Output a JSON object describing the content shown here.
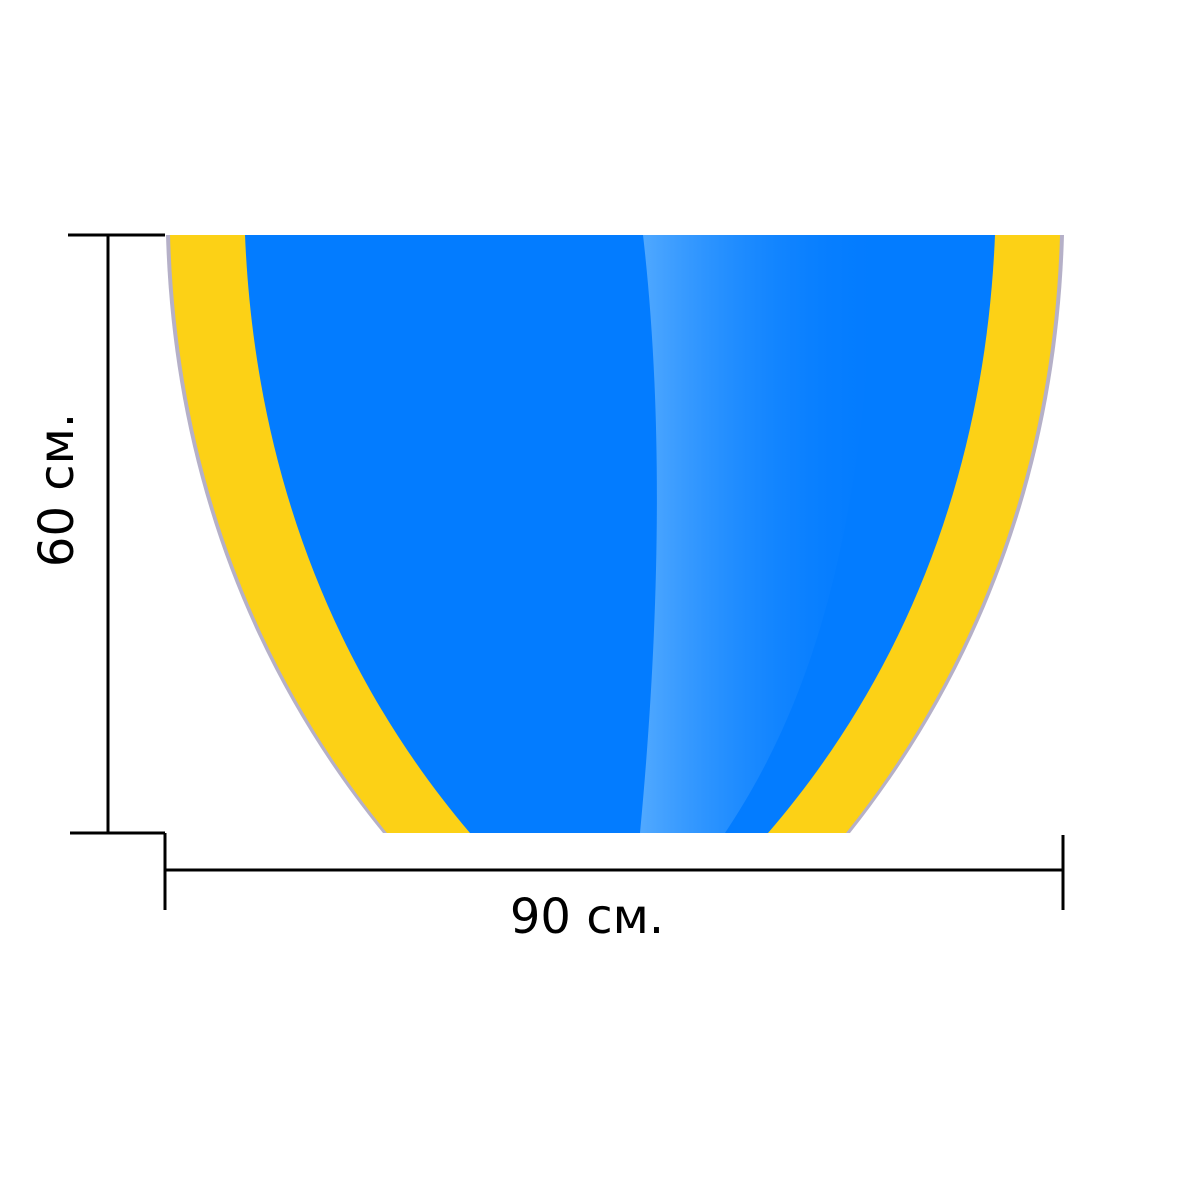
{
  "dimensions": {
    "height": {
      "label": "60 см."
    },
    "width": {
      "label": "90 см."
    }
  }
}
